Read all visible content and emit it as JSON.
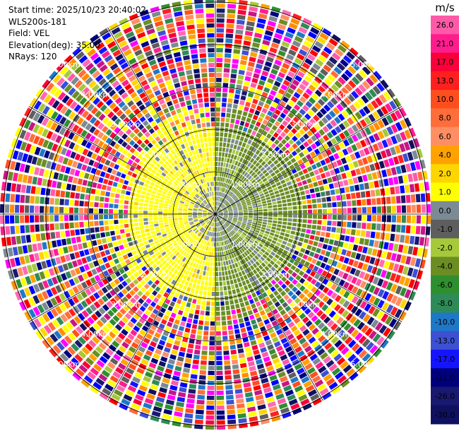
{
  "header": {
    "start_time": "Start time: 2025/10/23 20:40:02",
    "instrument": "WLS200s-181",
    "field": "Field: VEL",
    "elevation": "Elevation(deg): 35.00",
    "nrays": "NRays: 120"
  },
  "colorbar": {
    "unit": "m/s",
    "labels": [
      "26.0",
      "21.0",
      "17.0",
      "13.0",
      "10.0",
      "8.0",
      "6.0",
      "4.0",
      "2.0",
      "1.0",
      "0.0",
      "-1.0",
      "-2.0",
      "-4.0",
      "-6.0",
      "-8.0",
      "-10.0",
      "-13.0",
      "-17.0",
      "-21.0",
      "-26.0",
      "-30.0"
    ],
    "colors": [
      "#ff5aa8",
      "#ff1d8e",
      "#f8003a",
      "#ff1f1f",
      "#ff4e1e",
      "#ff6d3a",
      "#ff8e63",
      "#ffa200",
      "#ffd500",
      "#ffff00",
      "#7b8a93",
      "#5e5e5e",
      "#a6c93a",
      "#6b8e23",
      "#2f8f2f",
      "#2e8b57",
      "#1e78c8",
      "#3c50d2",
      "#1414ff",
      "#00007d",
      "#191970",
      "#101060"
    ]
  },
  "chart_data": {
    "type": "heatmap",
    "projection": "polar PPI",
    "field": "VEL",
    "units": "m/s",
    "nrays": 120,
    "elevation_deg": 35.0,
    "range_rings_km": [
      1.0,
      2.0,
      3.0,
      4.0,
      5.0
    ],
    "ring_labels": [
      "1.00km",
      "2.00km",
      "3.00km",
      "4.00km",
      "5.00km"
    ],
    "color_levels": [
      -30.0,
      -26.0,
      -21.0,
      -17.0,
      -13.0,
      -10.0,
      -8.0,
      -6.0,
      -4.0,
      -2.0,
      -1.0,
      0.0,
      1.0,
      2.0,
      4.0,
      6.0,
      8.0,
      10.0,
      13.0,
      17.0,
      21.0,
      26.0
    ],
    "azimuth_lines_deg": [
      0,
      30,
      60,
      90,
      120,
      150,
      180,
      210,
      240,
      270,
      300,
      330
    ]
  }
}
